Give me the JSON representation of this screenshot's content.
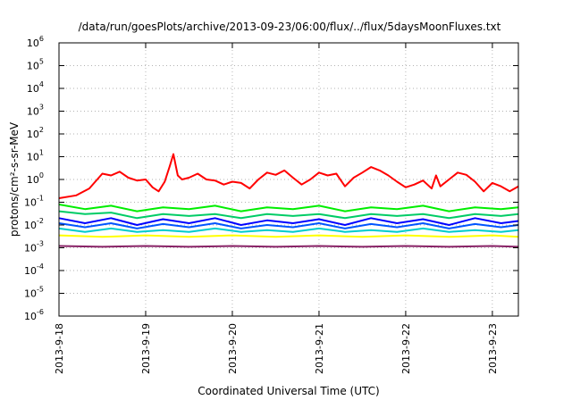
{
  "chart_data": {
    "type": "line",
    "title": "/data/run/goesPlots/archive/2013-09-23/06:00/flux/../flux/5daysMoonFluxes.txt",
    "xlabel": "Coordinated Universal Time (UTC)",
    "ylabel": "protons/cm²-s-sr-MeV",
    "yscale": "log",
    "ylim": [
      1e-06,
      1000000.0
    ],
    "xlim": [
      0,
      5.3
    ],
    "x_unit": "days after 2013-9-18 00:00 UTC",
    "xticks": [
      {
        "x": 0,
        "label": "2013-9-18"
      },
      {
        "x": 1,
        "label": "2013-9-19"
      },
      {
        "x": 2,
        "label": "2013-9-20"
      },
      {
        "x": 3,
        "label": "2013-9-21"
      },
      {
        "x": 4,
        "label": "2013-9-22"
      },
      {
        "x": 5,
        "label": "2013-9-23"
      }
    ],
    "yticks": [
      {
        "exp": 6,
        "label": "10",
        "sup": "6"
      },
      {
        "exp": 5,
        "label": "10",
        "sup": "5"
      },
      {
        "exp": 4,
        "label": "10",
        "sup": "4"
      },
      {
        "exp": 3,
        "label": "10",
        "sup": "3"
      },
      {
        "exp": 2,
        "label": "10",
        "sup": "2"
      },
      {
        "exp": 1,
        "label": "10",
        "sup": "1"
      },
      {
        "exp": 0,
        "label": "10",
        "sup": "0"
      },
      {
        "exp": -1,
        "label": "10",
        "sup": "-1"
      },
      {
        "exp": -2,
        "label": "10",
        "sup": "-2"
      },
      {
        "exp": -3,
        "label": "10",
        "sup": "-3"
      },
      {
        "exp": -4,
        "label": "10",
        "sup": "-4"
      },
      {
        "exp": -5,
        "label": "10",
        "sup": "-5"
      },
      {
        "exp": -6,
        "label": "10",
        "sup": "-6"
      }
    ],
    "grid": true,
    "legend": "none",
    "series": [
      {
        "color": "#ff0000",
        "x": [
          0,
          0.2,
          0.35,
          0.5,
          0.6,
          0.7,
          0.8,
          0.9,
          1.0,
          1.08,
          1.15,
          1.22,
          1.28,
          1.32,
          1.37,
          1.42,
          1.5,
          1.6,
          1.7,
          1.8,
          1.9,
          2.0,
          2.1,
          2.2,
          2.3,
          2.4,
          2.5,
          2.6,
          2.7,
          2.8,
          2.9,
          3.0,
          3.1,
          3.2,
          3.3,
          3.4,
          3.5,
          3.6,
          3.7,
          3.8,
          3.9,
          4.0,
          4.1,
          4.2,
          4.3,
          4.35,
          4.4,
          4.5,
          4.6,
          4.7,
          4.8,
          4.9,
          5.0,
          5.1,
          5.2,
          5.3
        ],
        "y": [
          0.15,
          0.2,
          0.4,
          1.8,
          1.5,
          2.2,
          1.2,
          0.9,
          1.0,
          0.45,
          0.3,
          0.8,
          4.0,
          13,
          1.5,
          1.0,
          1.2,
          1.8,
          1.0,
          0.9,
          0.6,
          0.8,
          0.7,
          0.4,
          1.0,
          2.0,
          1.6,
          2.5,
          1.2,
          0.6,
          1.0,
          2.0,
          1.5,
          1.8,
          0.5,
          1.2,
          2.0,
          3.5,
          2.5,
          1.5,
          0.8,
          0.45,
          0.6,
          0.9,
          0.4,
          1.5,
          0.5,
          1.0,
          2.0,
          1.6,
          0.8,
          0.3,
          0.7,
          0.5,
          0.3,
          0.5
        ]
      },
      {
        "color": "#00ee00",
        "x": [
          0,
          0.3,
          0.6,
          0.9,
          1.2,
          1.5,
          1.8,
          2.1,
          2.4,
          2.7,
          3.0,
          3.3,
          3.6,
          3.9,
          4.2,
          4.5,
          4.8,
          5.1,
          5.3
        ],
        "y": [
          0.08,
          0.05,
          0.07,
          0.04,
          0.06,
          0.05,
          0.07,
          0.04,
          0.06,
          0.05,
          0.07,
          0.04,
          0.06,
          0.05,
          0.07,
          0.04,
          0.06,
          0.05,
          0.06
        ]
      },
      {
        "color": "#00cc66",
        "x": [
          0,
          0.3,
          0.6,
          0.9,
          1.2,
          1.5,
          1.8,
          2.1,
          2.4,
          2.7,
          3.0,
          3.3,
          3.6,
          3.9,
          4.2,
          4.5,
          4.8,
          5.1,
          5.3
        ],
        "y": [
          0.04,
          0.03,
          0.035,
          0.02,
          0.03,
          0.025,
          0.03,
          0.02,
          0.03,
          0.025,
          0.03,
          0.02,
          0.03,
          0.025,
          0.03,
          0.02,
          0.03,
          0.025,
          0.03
        ]
      },
      {
        "color": "#0000ff",
        "x": [
          0,
          0.3,
          0.6,
          0.9,
          1.2,
          1.5,
          1.8,
          2.1,
          2.4,
          2.7,
          3.0,
          3.3,
          3.6,
          3.9,
          4.2,
          4.5,
          4.8,
          5.1,
          5.3
        ],
        "y": [
          0.02,
          0.012,
          0.02,
          0.01,
          0.018,
          0.012,
          0.02,
          0.01,
          0.016,
          0.012,
          0.018,
          0.01,
          0.02,
          0.012,
          0.018,
          0.01,
          0.02,
          0.012,
          0.015
        ]
      },
      {
        "color": "#0055ff",
        "x": [
          0,
          0.3,
          0.6,
          0.9,
          1.2,
          1.5,
          1.8,
          2.1,
          2.4,
          2.7,
          3.0,
          3.3,
          3.6,
          3.9,
          4.2,
          4.5,
          4.8,
          5.1,
          5.3
        ],
        "y": [
          0.012,
          0.008,
          0.012,
          0.007,
          0.011,
          0.008,
          0.012,
          0.007,
          0.01,
          0.008,
          0.012,
          0.007,
          0.011,
          0.008,
          0.012,
          0.007,
          0.011,
          0.008,
          0.01
        ]
      },
      {
        "color": "#00cccc",
        "x": [
          0,
          0.3,
          0.6,
          0.9,
          1.2,
          1.5,
          1.8,
          2.1,
          2.4,
          2.7,
          3.0,
          3.3,
          3.6,
          3.9,
          4.2,
          4.5,
          4.8,
          5.1,
          5.3
        ],
        "y": [
          0.007,
          0.005,
          0.007,
          0.005,
          0.006,
          0.005,
          0.007,
          0.005,
          0.006,
          0.005,
          0.007,
          0.005,
          0.006,
          0.005,
          0.007,
          0.005,
          0.006,
          0.005,
          0.006
        ]
      },
      {
        "color": "#ffff00",
        "x": [
          0,
          0.5,
          1.0,
          1.5,
          2.0,
          2.5,
          3.0,
          3.5,
          4.0,
          4.5,
          5.0,
          5.3
        ],
        "y": [
          0.0035,
          0.003,
          0.0035,
          0.003,
          0.0035,
          0.003,
          0.0035,
          0.003,
          0.0035,
          0.003,
          0.0035,
          0.003
        ]
      },
      {
        "color": "#882266",
        "x": [
          0,
          0.5,
          1.0,
          1.5,
          2.0,
          2.5,
          3.0,
          3.5,
          4.0,
          4.5,
          5.0,
          5.3
        ],
        "y": [
          0.0012,
          0.0011,
          0.0012,
          0.0011,
          0.0012,
          0.0011,
          0.0012,
          0.0011,
          0.0012,
          0.0011,
          0.0012,
          0.0011
        ]
      }
    ]
  }
}
